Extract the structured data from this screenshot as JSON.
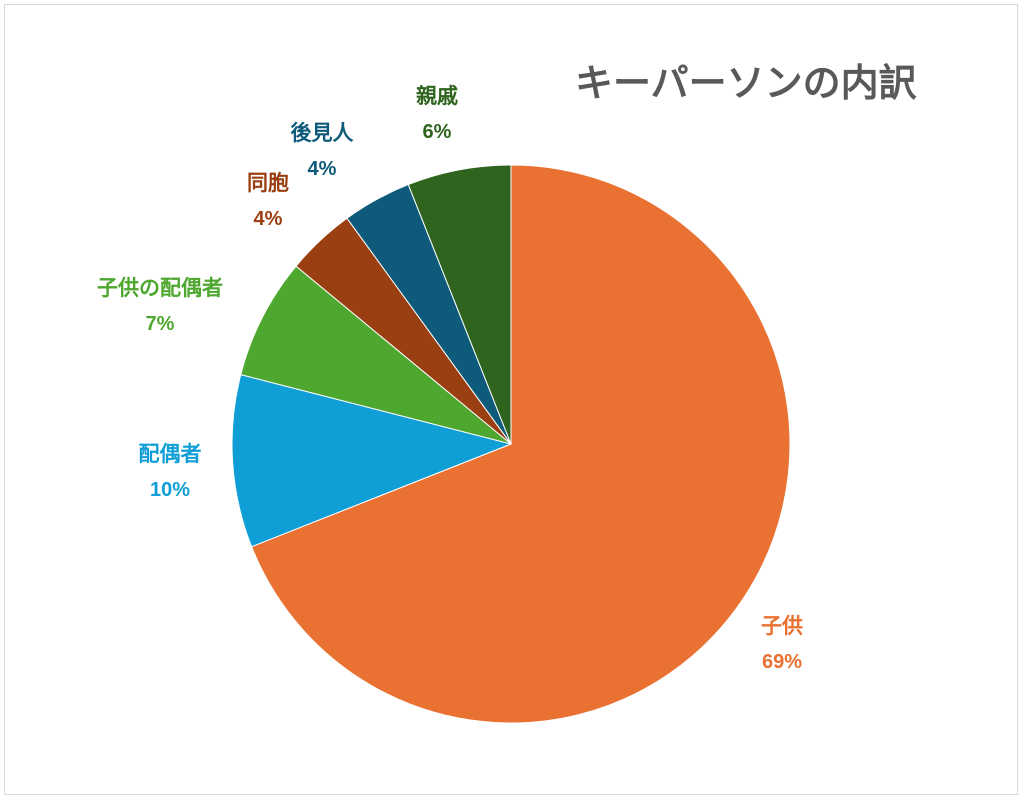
{
  "chart_data": {
    "type": "pie",
    "title": "キーパーソンの内訳",
    "start_angle_deg": 0,
    "direction": "clockwise",
    "legend": "none",
    "slices": [
      {
        "label": "子供",
        "value": 69,
        "percent_label": "69%",
        "color": "#E97132"
      },
      {
        "label": "配偶者",
        "value": 10,
        "percent_label": "10%",
        "color": "#0F9ED5"
      },
      {
        "label": "子供の配偶者",
        "value": 7,
        "percent_label": "7%",
        "color": "#4EA72E"
      },
      {
        "label": "同胞",
        "value": 4,
        "percent_label": "4%",
        "color": "#A02B93"
      },
      {
        "label": "後見人",
        "value": 4,
        "percent_label": "4%",
        "color": "#0E5A7A"
      },
      {
        "label": "親戚",
        "value": 6,
        "percent_label": "6%",
        "color": "#2E641E"
      }
    ]
  }
}
